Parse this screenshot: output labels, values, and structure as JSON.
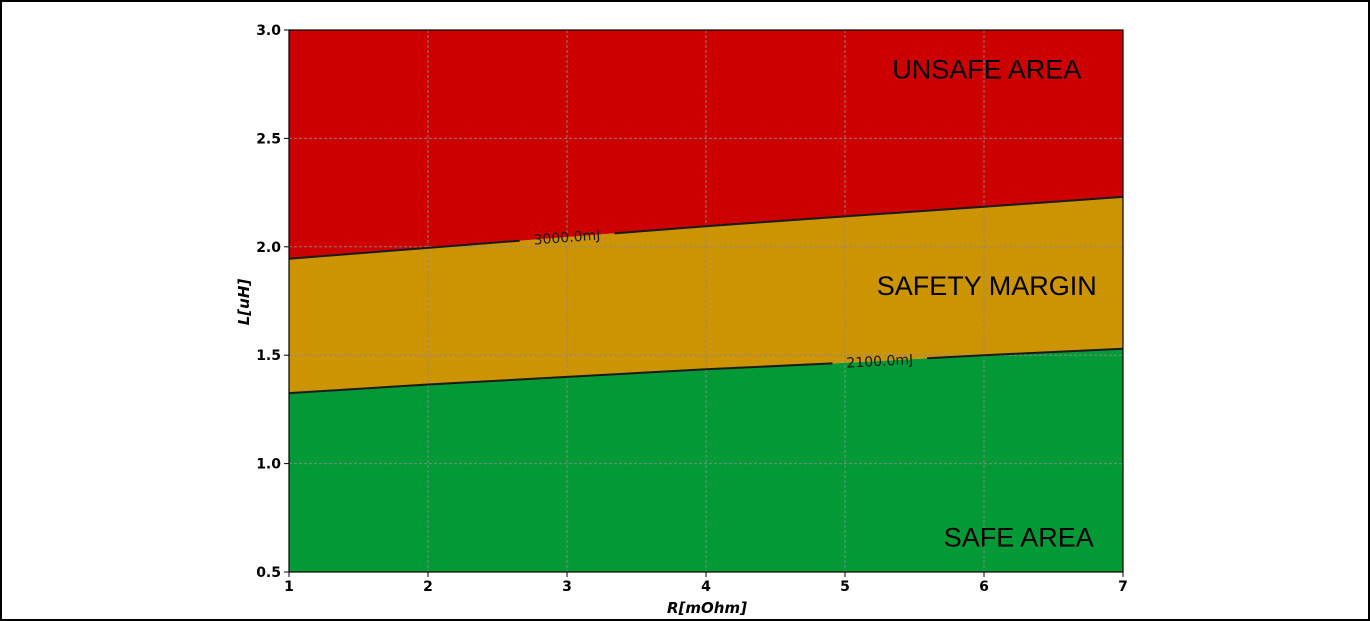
{
  "chart_data": {
    "type": "area",
    "title": "",
    "xlabel": "R[mOhm]",
    "ylabel": "L[uH]",
    "xlim": [
      1,
      7
    ],
    "ylim": [
      0.5,
      3.0
    ],
    "xticks": [
      "1",
      "2",
      "3",
      "4",
      "5",
      "6",
      "7"
    ],
    "yticks": [
      "0.5",
      "1.0",
      "1.5",
      "2.0",
      "2.5",
      "3.0"
    ],
    "grid": true,
    "contours": [
      {
        "label": "2100.0mJ",
        "label_x": 5.25,
        "x": [
          1,
          2,
          3,
          4,
          5,
          6,
          7
        ],
        "y": [
          1.325,
          1.365,
          1.4,
          1.435,
          1.465,
          1.5,
          1.53
        ]
      },
      {
        "label": "3000.0mJ",
        "label_x": 3.0,
        "x": [
          1,
          2,
          3,
          4,
          5,
          6,
          7
        ],
        "y": [
          1.945,
          1.995,
          2.045,
          2.095,
          2.14,
          2.185,
          2.23
        ]
      }
    ],
    "regions": [
      {
        "label": "SAFE AREA",
        "color": "#049937",
        "label_x": 6.25,
        "label_y": 0.65
      },
      {
        "label": "SAFETY MARGIN",
        "color": "#cc9400",
        "label_x": 6.02,
        "label_y": 1.81
      },
      {
        "label": "UNSAFE AREA",
        "color": "#cc0000",
        "label_x": 6.02,
        "label_y": 2.81
      }
    ]
  }
}
